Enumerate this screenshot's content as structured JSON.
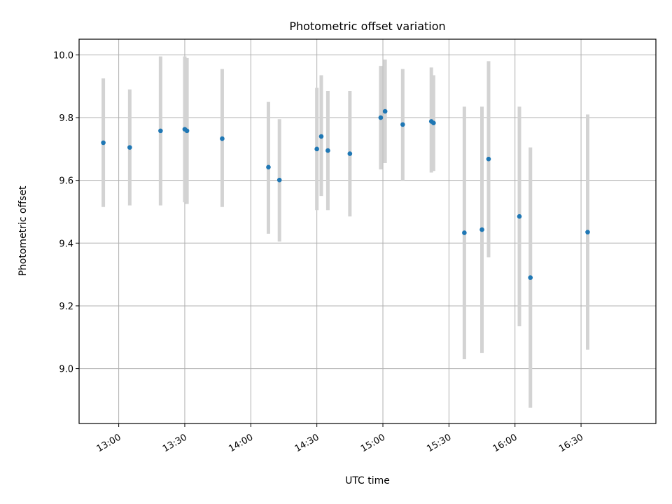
{
  "chart_data": {
    "type": "scatter",
    "title": "Photometric offset variation",
    "xlabel": "UTC time",
    "ylabel": "Photometric offset",
    "xlim": [
      "12:42",
      "17:04"
    ],
    "ylim": [
      8.825,
      10.05
    ],
    "grid": true,
    "x_ticks": [
      "13:00",
      "13:30",
      "14:00",
      "14:30",
      "15:00",
      "15:30",
      "16:00",
      "16:30"
    ],
    "y_ticks": [
      9.0,
      9.2,
      9.4,
      9.6,
      9.8,
      10.0
    ],
    "colors": {
      "points": "#1f77b4",
      "errorbars": "#d3d3d3",
      "grid": "#b0b0b0"
    },
    "points": [
      {
        "t": "12:53",
        "y": 9.72,
        "lo": 9.515,
        "hi": 9.925
      },
      {
        "t": "13:05",
        "y": 9.705,
        "lo": 9.52,
        "hi": 9.89
      },
      {
        "t": "13:19",
        "y": 9.758,
        "lo": 9.52,
        "hi": 9.995
      },
      {
        "t": "13:30",
        "y": 9.763,
        "lo": 9.53,
        "hi": 9.995
      },
      {
        "t": "13:31",
        "y": 9.758,
        "lo": 9.525,
        "hi": 9.99
      },
      {
        "t": "13:47",
        "y": 9.733,
        "lo": 9.515,
        "hi": 9.955
      },
      {
        "t": "14:08",
        "y": 9.642,
        "lo": 9.43,
        "hi": 9.85
      },
      {
        "t": "14:13",
        "y": 9.601,
        "lo": 9.405,
        "hi": 9.795
      },
      {
        "t": "14:30",
        "y": 9.7,
        "lo": 9.505,
        "hi": 9.895
      },
      {
        "t": "14:32",
        "y": 9.74,
        "lo": 9.55,
        "hi": 9.935
      },
      {
        "t": "14:35",
        "y": 9.695,
        "lo": 9.505,
        "hi": 9.885
      },
      {
        "t": "14:45",
        "y": 9.685,
        "lo": 9.485,
        "hi": 9.885
      },
      {
        "t": "14:59",
        "y": 9.8,
        "lo": 9.635,
        "hi": 9.965
      },
      {
        "t": "15:01",
        "y": 9.82,
        "lo": 9.655,
        "hi": 9.985
      },
      {
        "t": "15:09",
        "y": 9.778,
        "lo": 9.6,
        "hi": 9.955
      },
      {
        "t": "15:22",
        "y": 9.788,
        "lo": 9.625,
        "hi": 9.96
      },
      {
        "t": "15:23",
        "y": 9.783,
        "lo": 9.63,
        "hi": 9.935
      },
      {
        "t": "15:37",
        "y": 9.433,
        "lo": 9.03,
        "hi": 9.835
      },
      {
        "t": "15:45",
        "y": 9.443,
        "lo": 9.05,
        "hi": 9.835
      },
      {
        "t": "15:48",
        "y": 9.668,
        "lo": 9.355,
        "hi": 9.98
      },
      {
        "t": "16:02",
        "y": 9.485,
        "lo": 9.135,
        "hi": 9.835
      },
      {
        "t": "16:07",
        "y": 9.29,
        "lo": 8.875,
        "hi": 9.705
      },
      {
        "t": "16:33",
        "y": 9.435,
        "lo": 9.06,
        "hi": 9.81
      }
    ]
  }
}
